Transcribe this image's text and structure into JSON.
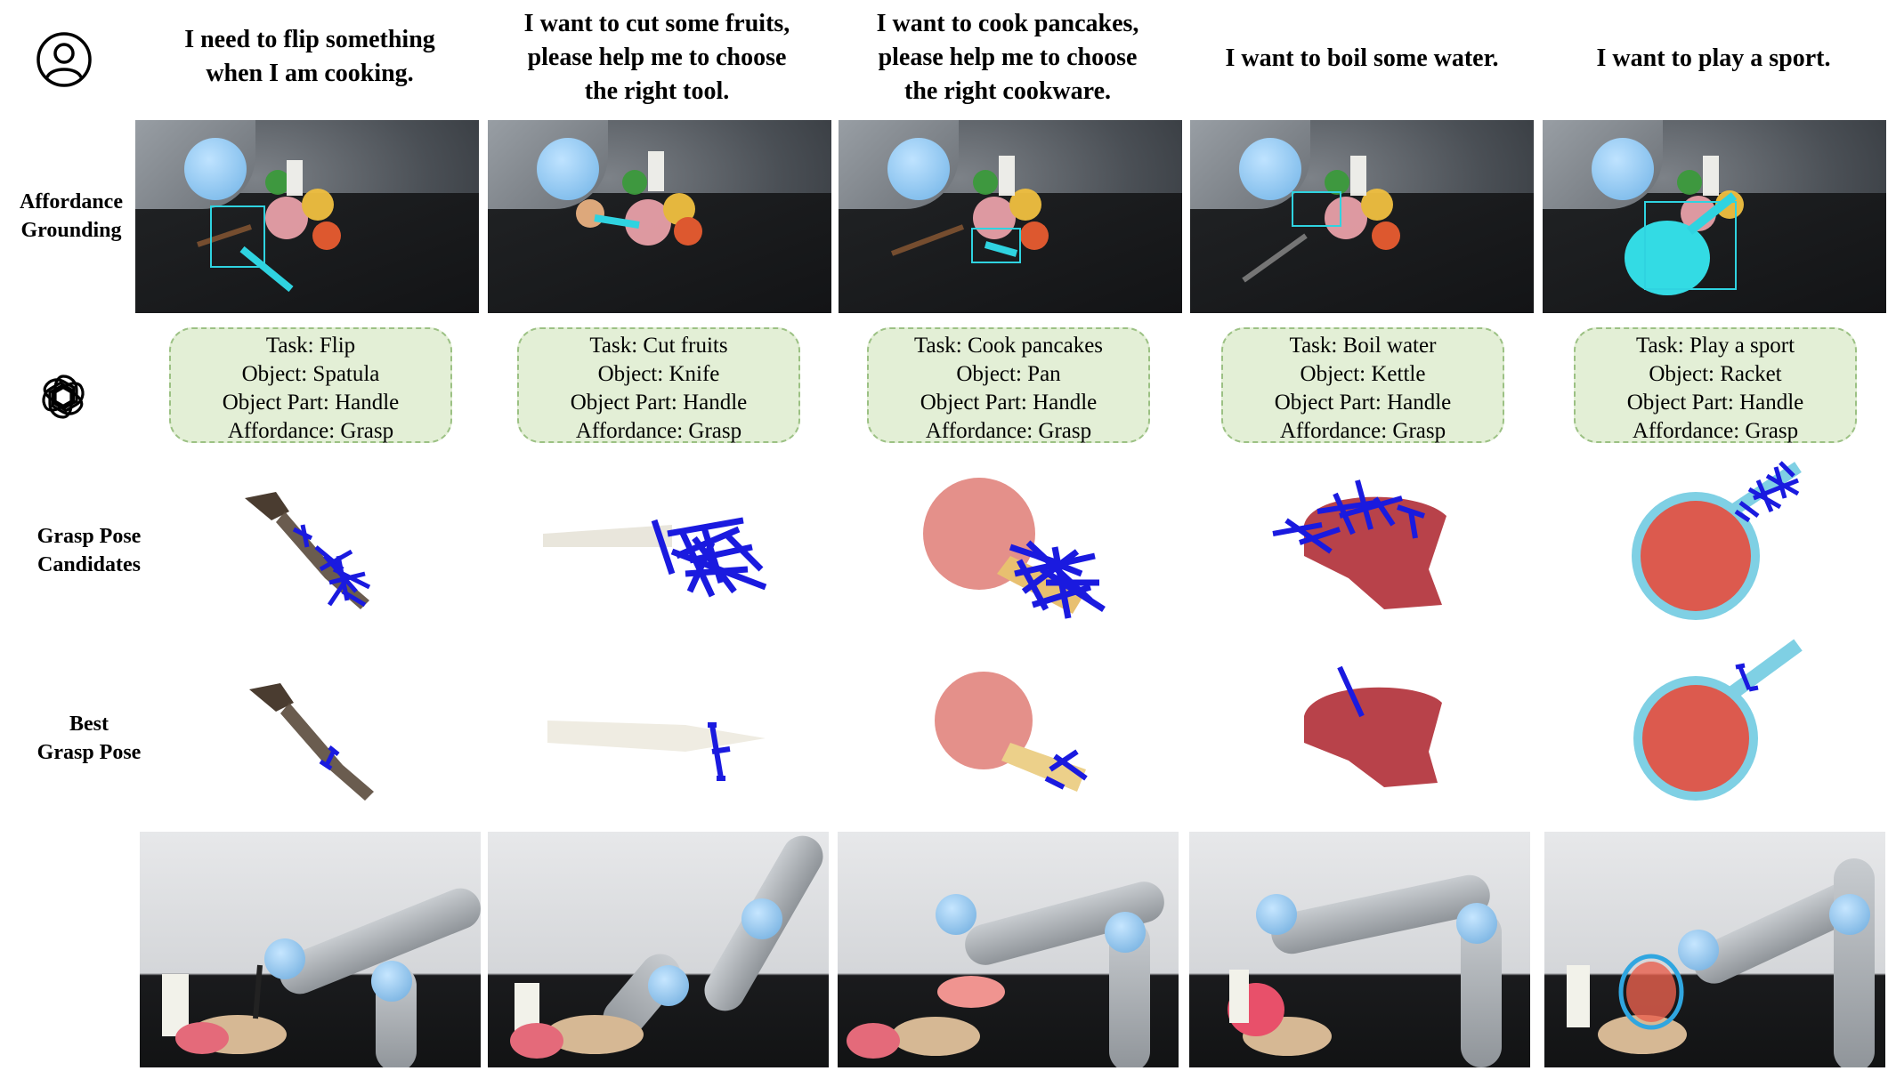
{
  "row_labels": {
    "affordance": "Affordance\nGrounding",
    "candidates": "Grasp Pose\nCandidates",
    "best": "Best\nGrasp Pose"
  },
  "icons": {
    "user": "user-icon",
    "gpt": "openai-logo-icon"
  },
  "colors": {
    "bbox": "#2fd3e0",
    "grasp": "#1a1adf",
    "gpt_fill": "#e3efd6",
    "gpt_border": "#9cc184"
  },
  "columns": [
    {
      "request": "I need to flip something\nwhen I am cooking.",
      "task": "Task: Flip",
      "object": "Object: Spatula",
      "part": "Object Part: Handle",
      "affordance": "Affordance: Grasp"
    },
    {
      "request": "I want to cut some fruits,\nplease help me to choose\nthe right tool.",
      "task": "Task: Cut fruits",
      "object": "Object: Knife",
      "part": "Object Part: Handle",
      "affordance": "Affordance: Grasp"
    },
    {
      "request": "I want to cook pancakes,\nplease help me to choose\nthe right cookware.",
      "task": "Task: Cook pancakes",
      "object": "Object: Pan",
      "part": "Object Part: Handle",
      "affordance": "Affordance: Grasp"
    },
    {
      "request": "I want to boil some water.",
      "task": "Task: Boil water",
      "object": "Object: Kettle",
      "part": "Object Part: Handle",
      "affordance": "Affordance: Grasp"
    },
    {
      "request": "I want to play a sport.",
      "task": "Task: Play a sport",
      "object": "Object: Racket",
      "part": "Object Part: Handle",
      "affordance": "Affordance: Grasp"
    }
  ]
}
